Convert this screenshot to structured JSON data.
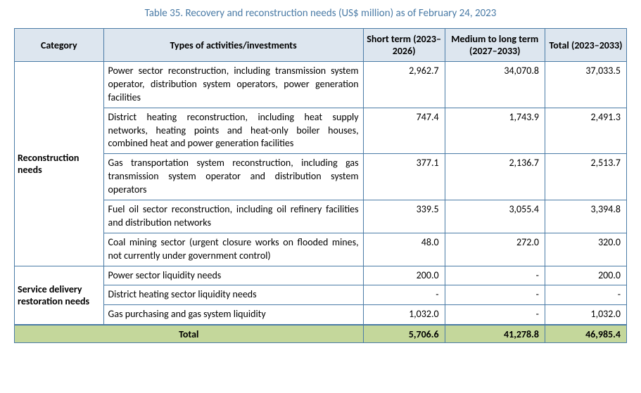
{
  "table": {
    "title": "Table 35. Recovery and reconstruction needs (US$ million) as of February 24, 2023",
    "headers": {
      "category": "Category",
      "activity": "Types of activities/investments",
      "short_term": "Short term (2023–2026)",
      "medium_term": "Medium to long term (2027–2033)",
      "total": "Total (2023–2033)"
    },
    "categories": [
      {
        "label": "Reconstruction needs",
        "rows": [
          {
            "activity": "Power sector reconstruction, including transmission system operator, distribution system operators, power generation facilities",
            "short": "2,962.7",
            "medium": "34,070.8",
            "total": "37,033.5"
          },
          {
            "activity": "District heating reconstruction, including heat supply networks, heating points and heat-only boiler houses, combined heat and power generation facilities",
            "short": "747.4",
            "medium": "1,743.9",
            "total": "2,491.3"
          },
          {
            "activity": "Gas transportation system reconstruction, including gas transmission system operator and distribution system operators",
            "short": "377.1",
            "medium": "2,136.7",
            "total": "2,513.7"
          },
          {
            "activity": "Fuel oil sector reconstruction, including oil refinery facilities and distribution networks",
            "short": "339.5",
            "medium": "3,055.4",
            "total": "3,394.8"
          },
          {
            "activity": "Coal mining sector (urgent closure works on flooded mines, not currently under government control)",
            "short": "48.0",
            "medium": "272.0",
            "total": "320.0"
          }
        ]
      },
      {
        "label": "Service delivery restoration needs",
        "rows": [
          {
            "activity": "Power sector liquidity needs",
            "short": "200.0",
            "medium": "-",
            "total": "200.0"
          },
          {
            "activity": "District heating sector liquidity needs",
            "short": "-",
            "medium": "-",
            "total": "-"
          },
          {
            "activity": "Gas purchasing and gas system liquidity",
            "short": "1,032.0",
            "medium": "-",
            "total": "1,032.0"
          }
        ]
      }
    ],
    "totals": {
      "label": "Total",
      "short": "5,706.6",
      "medium": "41,278.8",
      "total": "46,985.4"
    },
    "colors": {
      "title_color": "#4a7ba6",
      "header_bg": "#dde6ef",
      "border_color": "#4a7ba6",
      "total_bg": "#c4d79b"
    }
  }
}
